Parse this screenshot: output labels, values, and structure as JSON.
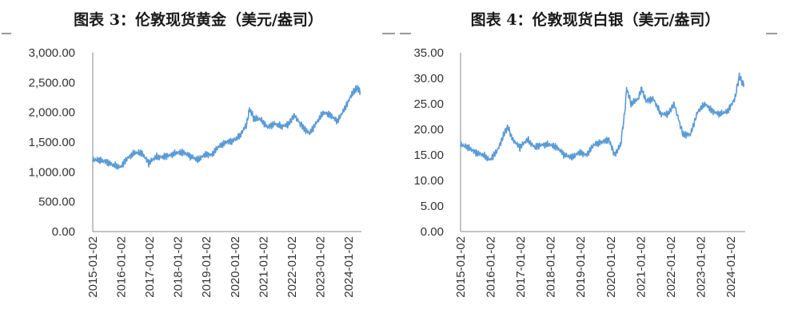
{
  "chart_data": [
    {
      "type": "line",
      "title": "图表 3：伦敦现货黄金（美元/盎司）",
      "xlabel": "",
      "ylabel": "",
      "ylim": [
        0,
        3000
      ],
      "ytick_labels": [
        "3,000.00",
        "2,500.00",
        "2,000.00",
        "1,500.00",
        "1,000.00",
        "500.00",
        "0.00"
      ],
      "xtick_labels": [
        "2015-01-02",
        "2016-01-02",
        "2017-01-02",
        "2018-01-02",
        "2019-01-02",
        "2020-01-02",
        "2021-01-02",
        "2022-01-02",
        "2023-01-02",
        "2024-01-02"
      ],
      "grid": false,
      "color": "#5b9bd5",
      "series": [
        {
          "x": [
            2015.0,
            2015.25,
            2015.5,
            2015.75,
            2016.0,
            2016.25,
            2016.5,
            2016.75,
            2017.0,
            2017.25,
            2017.5,
            2017.75,
            2018.0,
            2018.25,
            2018.5,
            2018.75,
            2019.0,
            2019.25,
            2019.5,
            2019.75,
            2020.0,
            2020.25,
            2020.5,
            2020.6,
            2020.75,
            2021.0,
            2021.25,
            2021.5,
            2021.75,
            2022.0,
            2022.2,
            2022.5,
            2022.75,
            2023.0,
            2023.25,
            2023.5,
            2023.75,
            2024.0,
            2024.25,
            2024.4,
            2024.5,
            2024.55
          ],
          "y": [
            1200,
            1200,
            1170,
            1110,
            1080,
            1240,
            1320,
            1320,
            1150,
            1250,
            1250,
            1280,
            1320,
            1330,
            1260,
            1200,
            1290,
            1290,
            1420,
            1500,
            1520,
            1600,
            1800,
            2060,
            1900,
            1880,
            1750,
            1810,
            1760,
            1800,
            1950,
            1750,
            1650,
            1830,
            2000,
            1950,
            1850,
            2060,
            2300,
            2400,
            2380,
            2350
          ]
        }
      ]
    },
    {
      "type": "line",
      "title": "图表 4：伦敦现货白银（美元/盎司）",
      "xlabel": "",
      "ylabel": "",
      "ylim": [
        0,
        35
      ],
      "ytick_labels": [
        "35.00",
        "30.00",
        "25.00",
        "20.00",
        "15.00",
        "10.00",
        "5.00",
        "0.00"
      ],
      "xtick_labels": [
        "2015-01-02",
        "2016-01-02",
        "2017-01-02",
        "2018-01-02",
        "2019-01-02",
        "2020-01-02",
        "2021-01-02",
        "2022-01-02",
        "2023-01-02",
        "2024-01-02"
      ],
      "grid": false,
      "color": "#5b9bd5",
      "series": [
        {
          "x": [
            2015.0,
            2015.25,
            2015.5,
            2015.75,
            2016.0,
            2016.25,
            2016.5,
            2016.6,
            2016.75,
            2017.0,
            2017.25,
            2017.5,
            2017.75,
            2018.0,
            2018.25,
            2018.5,
            2018.75,
            2019.0,
            2019.25,
            2019.5,
            2019.75,
            2020.0,
            2020.2,
            2020.4,
            2020.55,
            2020.6,
            2020.75,
            2021.0,
            2021.1,
            2021.25,
            2021.5,
            2021.75,
            2022.0,
            2022.2,
            2022.5,
            2022.75,
            2023.0,
            2023.25,
            2023.5,
            2023.75,
            2024.0,
            2024.25,
            2024.4,
            2024.5,
            2024.55
          ],
          "y": [
            17,
            16.5,
            15.5,
            15,
            14,
            16,
            19.5,
            20.5,
            18,
            16.5,
            18,
            16.5,
            17,
            17,
            16.5,
            15,
            14.5,
            15.5,
            15,
            17,
            17.5,
            18,
            15,
            17,
            24,
            28,
            25,
            26,
            28,
            25.5,
            26,
            23,
            23,
            25,
            19,
            19,
            23.5,
            25,
            23.5,
            23,
            23.5,
            26,
            30.5,
            29,
            29
          ]
        }
      ]
    }
  ]
}
